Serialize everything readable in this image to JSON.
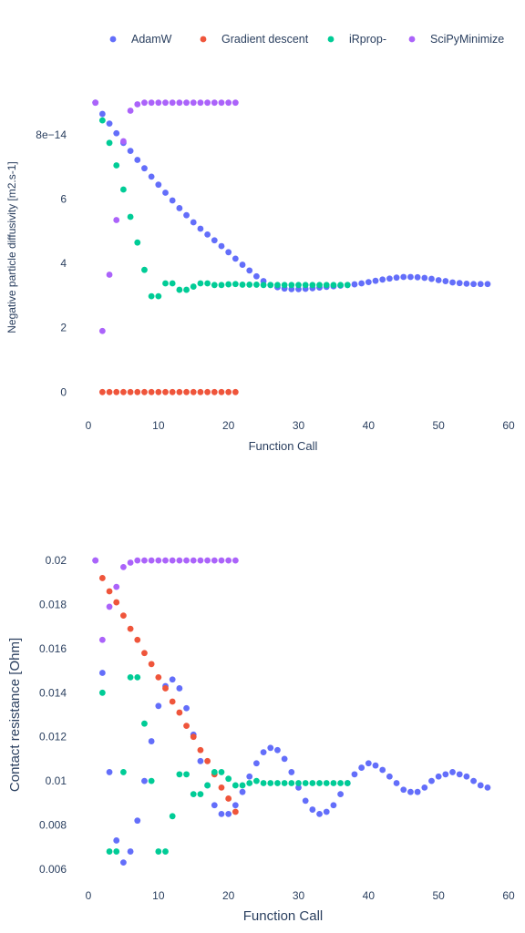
{
  "chart_data": [
    {
      "type": "scatter",
      "xlabel": "Function Call",
      "ylabel": "Negative particle diffusivity [m2.s-1]",
      "xlim": [
        -6,
        60
      ],
      "ylim": [
        -7e-15,
        9.7e-14
      ],
      "x_ticks": [
        0,
        10,
        20,
        30,
        40,
        50,
        60
      ],
      "y_ticks": [
        0,
        2e-14,
        4e-14,
        6e-14,
        8e-14
      ],
      "y_tick_labels": [
        "0",
        "2",
        "4",
        "6",
        "8e−14"
      ],
      "legend": {
        "placement": "top-center"
      },
      "series": [
        {
          "name": "AdamW",
          "color": "#636efa",
          "x": [
            1,
            2,
            3,
            4,
            5,
            6,
            7,
            8,
            9,
            10,
            11,
            12,
            13,
            14,
            15,
            16,
            17,
            18,
            19,
            20,
            21,
            22,
            23,
            24,
            25,
            26,
            27,
            28,
            29,
            30,
            31,
            32,
            33,
            34,
            35,
            36,
            37,
            38,
            39,
            40,
            41,
            42,
            43,
            44,
            45,
            46,
            47,
            48,
            49,
            50,
            51,
            52,
            53,
            54,
            55,
            56,
            57
          ],
          "y": [
            9e-14,
            8.65e-14,
            8.35e-14,
            8.05e-14,
            7.75e-14,
            7.5e-14,
            7.22e-14,
            6.96e-14,
            6.7e-14,
            6.45e-14,
            6.2e-14,
            5.96e-14,
            5.72e-14,
            5.5e-14,
            5.28e-14,
            5.08e-14,
            4.9e-14,
            4.72e-14,
            4.54e-14,
            4.35e-14,
            4.15e-14,
            3.96e-14,
            3.78e-14,
            3.6e-14,
            3.45e-14,
            3.33e-14,
            3.26e-14,
            3.22e-14,
            3.2e-14,
            3.2e-14,
            3.21e-14,
            3.23e-14,
            3.25e-14,
            3.27e-14,
            3.29e-14,
            3.31e-14,
            3.33e-14,
            3.35e-14,
            3.38e-14,
            3.42e-14,
            3.46e-14,
            3.5e-14,
            3.53e-14,
            3.56e-14,
            3.58e-14,
            3.58e-14,
            3.57e-14,
            3.55e-14,
            3.52e-14,
            3.48e-14,
            3.45e-14,
            3.41e-14,
            3.39e-14,
            3.37e-14,
            3.36e-14,
            3.36e-14,
            3.36e-14
          ]
        },
        {
          "name": "Gradient descent",
          "color": "#ef553b",
          "x": [
            2,
            3,
            4,
            5,
            6,
            7,
            8,
            9,
            10,
            11,
            12,
            13,
            14,
            15,
            16,
            17,
            18,
            19,
            20,
            21
          ],
          "y": [
            0,
            0,
            0,
            0,
            0,
            0,
            0,
            0,
            0,
            0,
            0,
            0,
            0,
            0,
            0,
            0,
            0,
            0,
            0,
            0
          ]
        },
        {
          "name": "iRprop-",
          "color": "#00cc96",
          "x": [
            2,
            3,
            4,
            5,
            6,
            7,
            8,
            9,
            10,
            11,
            12,
            13,
            14,
            15,
            16,
            17,
            18,
            19,
            20,
            21,
            22,
            23,
            24,
            25,
            26,
            27,
            28,
            29,
            30,
            31,
            32,
            33,
            34,
            35,
            36,
            37
          ],
          "y": [
            8.45e-14,
            7.75e-14,
            7.05e-14,
            6.3e-14,
            5.45e-14,
            4.65e-14,
            3.8e-14,
            2.98e-14,
            2.98e-14,
            3.38e-14,
            3.38e-14,
            3.18e-14,
            3.18e-14,
            3.28e-14,
            3.38e-14,
            3.38e-14,
            3.33e-14,
            3.33e-14,
            3.35e-14,
            3.36e-14,
            3.34e-14,
            3.34e-14,
            3.34e-14,
            3.33e-14,
            3.33e-14,
            3.33e-14,
            3.33e-14,
            3.33e-14,
            3.33e-14,
            3.33e-14,
            3.33e-14,
            3.33e-14,
            3.33e-14,
            3.33e-14,
            3.33e-14,
            3.33e-14
          ]
        },
        {
          "name": "SciPyMinimize",
          "color": "#ab63fa",
          "x": [
            1,
            2,
            3,
            4,
            5,
            6,
            7,
            8,
            9,
            10,
            11,
            12,
            13,
            14,
            15,
            16,
            17,
            18,
            19,
            20,
            21
          ],
          "y": [
            9e-14,
            1.9e-14,
            3.65e-14,
            5.35e-14,
            7.8e-14,
            8.75e-14,
            8.95e-14,
            9e-14,
            9e-14,
            9e-14,
            9e-14,
            9e-14,
            9e-14,
            9e-14,
            9e-14,
            9e-14,
            9e-14,
            9e-14,
            9e-14,
            9e-14,
            9e-14
          ]
        }
      ]
    },
    {
      "type": "scatter",
      "xlabel": "Function Call",
      "ylabel": "Contact resistance [Ohm]",
      "xlim": [
        -6,
        60
      ],
      "ylim": [
        0.0055,
        0.0205
      ],
      "x_ticks": [
        0,
        10,
        20,
        30,
        40,
        50,
        60
      ],
      "y_ticks": [
        0.006,
        0.008,
        0.01,
        0.012,
        0.014,
        0.016,
        0.018,
        0.02
      ],
      "y_tick_labels": [
        "0.006",
        "0.008",
        "0.01",
        "0.012",
        "0.014",
        "0.016",
        "0.018",
        "0.02"
      ],
      "series": [
        {
          "name": "AdamW",
          "color": "#636efa",
          "x": [
            1,
            2,
            3,
            4,
            5,
            6,
            7,
            8,
            9,
            10,
            11,
            12,
            13,
            14,
            15,
            16,
            17,
            18,
            19,
            20,
            21,
            22,
            23,
            24,
            25,
            26,
            27,
            28,
            29,
            30,
            31,
            32,
            33,
            34,
            35,
            36,
            37,
            38,
            39,
            40,
            41,
            42,
            43,
            44,
            45,
            46,
            47,
            48,
            49,
            50,
            51,
            52,
            53,
            54,
            55,
            56,
            57
          ],
          "y": [
            0.02,
            0.0149,
            0.0104,
            0.0073,
            0.0063,
            0.0068,
            0.0082,
            0.01,
            0.0118,
            0.0134,
            0.0143,
            0.0146,
            0.0142,
            0.0133,
            0.0121,
            0.0109,
            0.0098,
            0.0089,
            0.0085,
            0.0085,
            0.0089,
            0.0095,
            0.0102,
            0.0108,
            0.0113,
            0.0115,
            0.0114,
            0.011,
            0.0104,
            0.0097,
            0.0091,
            0.0087,
            0.0085,
            0.0086,
            0.0089,
            0.0094,
            0.0099,
            0.0103,
            0.0106,
            0.0108,
            0.0107,
            0.0105,
            0.0102,
            0.0099,
            0.0096,
            0.0095,
            0.0095,
            0.0097,
            0.01,
            0.0102,
            0.0103,
            0.0104,
            0.0103,
            0.0102,
            0.01,
            0.0098,
            0.0097
          ]
        },
        {
          "name": "Gradient descent",
          "color": "#ef553b",
          "x": [
            2,
            3,
            4,
            5,
            6,
            7,
            8,
            9,
            10,
            11,
            12,
            13,
            14,
            15,
            16,
            17,
            18,
            19,
            20,
            21
          ],
          "y": [
            0.0192,
            0.0186,
            0.0181,
            0.0175,
            0.0169,
            0.0164,
            0.0158,
            0.0153,
            0.0147,
            0.0142,
            0.0136,
            0.0131,
            0.0125,
            0.012,
            0.0114,
            0.0109,
            0.0103,
            0.0097,
            0.0092,
            0.0086
          ]
        },
        {
          "name": "iRprop-",
          "color": "#00cc96",
          "x": [
            2,
            3,
            4,
            5,
            6,
            7,
            8,
            9,
            10,
            11,
            12,
            13,
            14,
            15,
            16,
            17,
            18,
            19,
            20,
            21,
            22,
            23,
            24,
            25,
            26,
            27,
            28,
            29,
            30,
            31,
            32,
            33,
            34,
            35,
            36,
            37
          ],
          "y": [
            0.014,
            0.0068,
            0.0068,
            0.0104,
            0.0147,
            0.0147,
            0.0126,
            0.01,
            0.0068,
            0.0068,
            0.0084,
            0.0103,
            0.0103,
            0.0094,
            0.0094,
            0.0098,
            0.0104,
            0.0104,
            0.0101,
            0.0098,
            0.0098,
            0.0099,
            0.01,
            0.0099,
            0.0099,
            0.0099,
            0.0099,
            0.0099,
            0.0099,
            0.0099,
            0.0099,
            0.0099,
            0.0099,
            0.0099,
            0.0099,
            0.0099
          ]
        },
        {
          "name": "SciPyMinimize",
          "color": "#ab63fa",
          "x": [
            1,
            2,
            3,
            4,
            5,
            6,
            7,
            8,
            9,
            10,
            11,
            12,
            13,
            14,
            15,
            16,
            17,
            18,
            19,
            20,
            21
          ],
          "y": [
            0.02,
            0.0164,
            0.0179,
            0.0188,
            0.0197,
            0.0199,
            0.02,
            0.02,
            0.02,
            0.02,
            0.02,
            0.02,
            0.02,
            0.02,
            0.02,
            0.02,
            0.02,
            0.02,
            0.02,
            0.02,
            0.02
          ]
        }
      ]
    }
  ]
}
